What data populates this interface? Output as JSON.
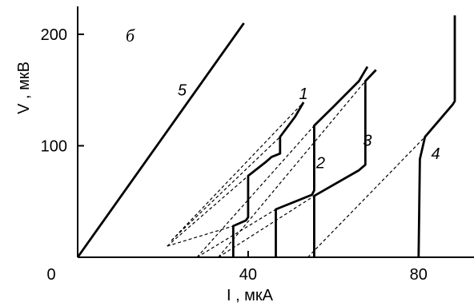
{
  "chart_data": {
    "type": "line",
    "panel_label": "б",
    "xlabel": "I , мкА",
    "ylabel": "V , мкВ",
    "xlim": [
      0,
      93
    ],
    "ylim": [
      0,
      225
    ],
    "x_ticks": [
      {
        "value": 0,
        "label": "0"
      },
      {
        "value": 40,
        "label": "40"
      },
      {
        "value": 80,
        "label": "80"
      }
    ],
    "y_ticks": [
      {
        "value": 100,
        "label": "100"
      },
      {
        "value": 200,
        "label": "200"
      }
    ],
    "grid": false,
    "line_color": "#000000",
    "series": [
      {
        "name": "1",
        "label_at": [
          53,
          147
        ],
        "solid": [
          [
            36.5,
            0
          ],
          [
            36.5,
            28
          ],
          [
            39.5,
            33
          ],
          [
            40,
            36
          ],
          [
            40,
            73
          ],
          [
            44,
            85
          ],
          [
            45.5,
            90
          ],
          [
            47.5,
            93
          ],
          [
            47.5,
            108
          ],
          [
            51,
            126
          ],
          [
            53,
            139
          ]
        ],
        "dashed": [
          [
            [
              21,
              10
            ],
            [
              36.5,
              28
            ]
          ],
          [
            [
              21,
              10
            ],
            [
              40,
              73
            ]
          ],
          [
            [
              22,
              15
            ],
            [
              47.5,
              108
            ]
          ],
          [
            [
              22,
              15
            ],
            [
              53,
              139
            ]
          ]
        ]
      },
      {
        "name": "2",
        "label_at": [
          57,
          85
        ],
        "solid": [
          [
            46.5,
            0
          ],
          [
            46.5,
            43
          ],
          [
            55,
            56
          ],
          [
            55.5,
            60
          ],
          [
            55.5,
            118
          ],
          [
            60,
            135
          ],
          [
            66,
            158
          ],
          [
            68,
            171
          ]
        ],
        "dashed": [
          [
            [
              28,
              0
            ],
            [
              46.5,
              43
            ]
          ],
          [
            [
              28,
              0
            ],
            [
              55.5,
              118
            ]
          ]
        ]
      },
      {
        "name": "3",
        "label_at": [
          68,
          105
        ],
        "solid": [
          [
            55.5,
            0
          ],
          [
            55.5,
            55
          ],
          [
            66,
            78
          ],
          [
            67.5,
            83
          ],
          [
            67.5,
            158
          ],
          [
            70,
            168
          ]
        ],
        "dashed": [
          [
            [
              33,
              0
            ],
            [
              55.5,
              55
            ]
          ],
          [
            [
              33,
              0
            ],
            [
              67.5,
              158
            ]
          ]
        ]
      },
      {
        "name": "4",
        "label_at": [
          84,
          93
        ],
        "solid": [
          [
            80,
            0
          ],
          [
            80.3,
            88
          ],
          [
            81.5,
            108
          ],
          [
            88,
            137
          ],
          [
            88.5,
            140
          ],
          [
            88.5,
            217
          ]
        ],
        "dashed": [
          [
            [
              54,
              0
            ],
            [
              81.5,
              108
            ]
          ]
        ]
      },
      {
        "name": "5",
        "label_at": [
          24.5,
          150
        ],
        "solid": [
          [
            0,
            0
          ],
          [
            39,
            210
          ]
        ],
        "dashed": []
      }
    ]
  }
}
